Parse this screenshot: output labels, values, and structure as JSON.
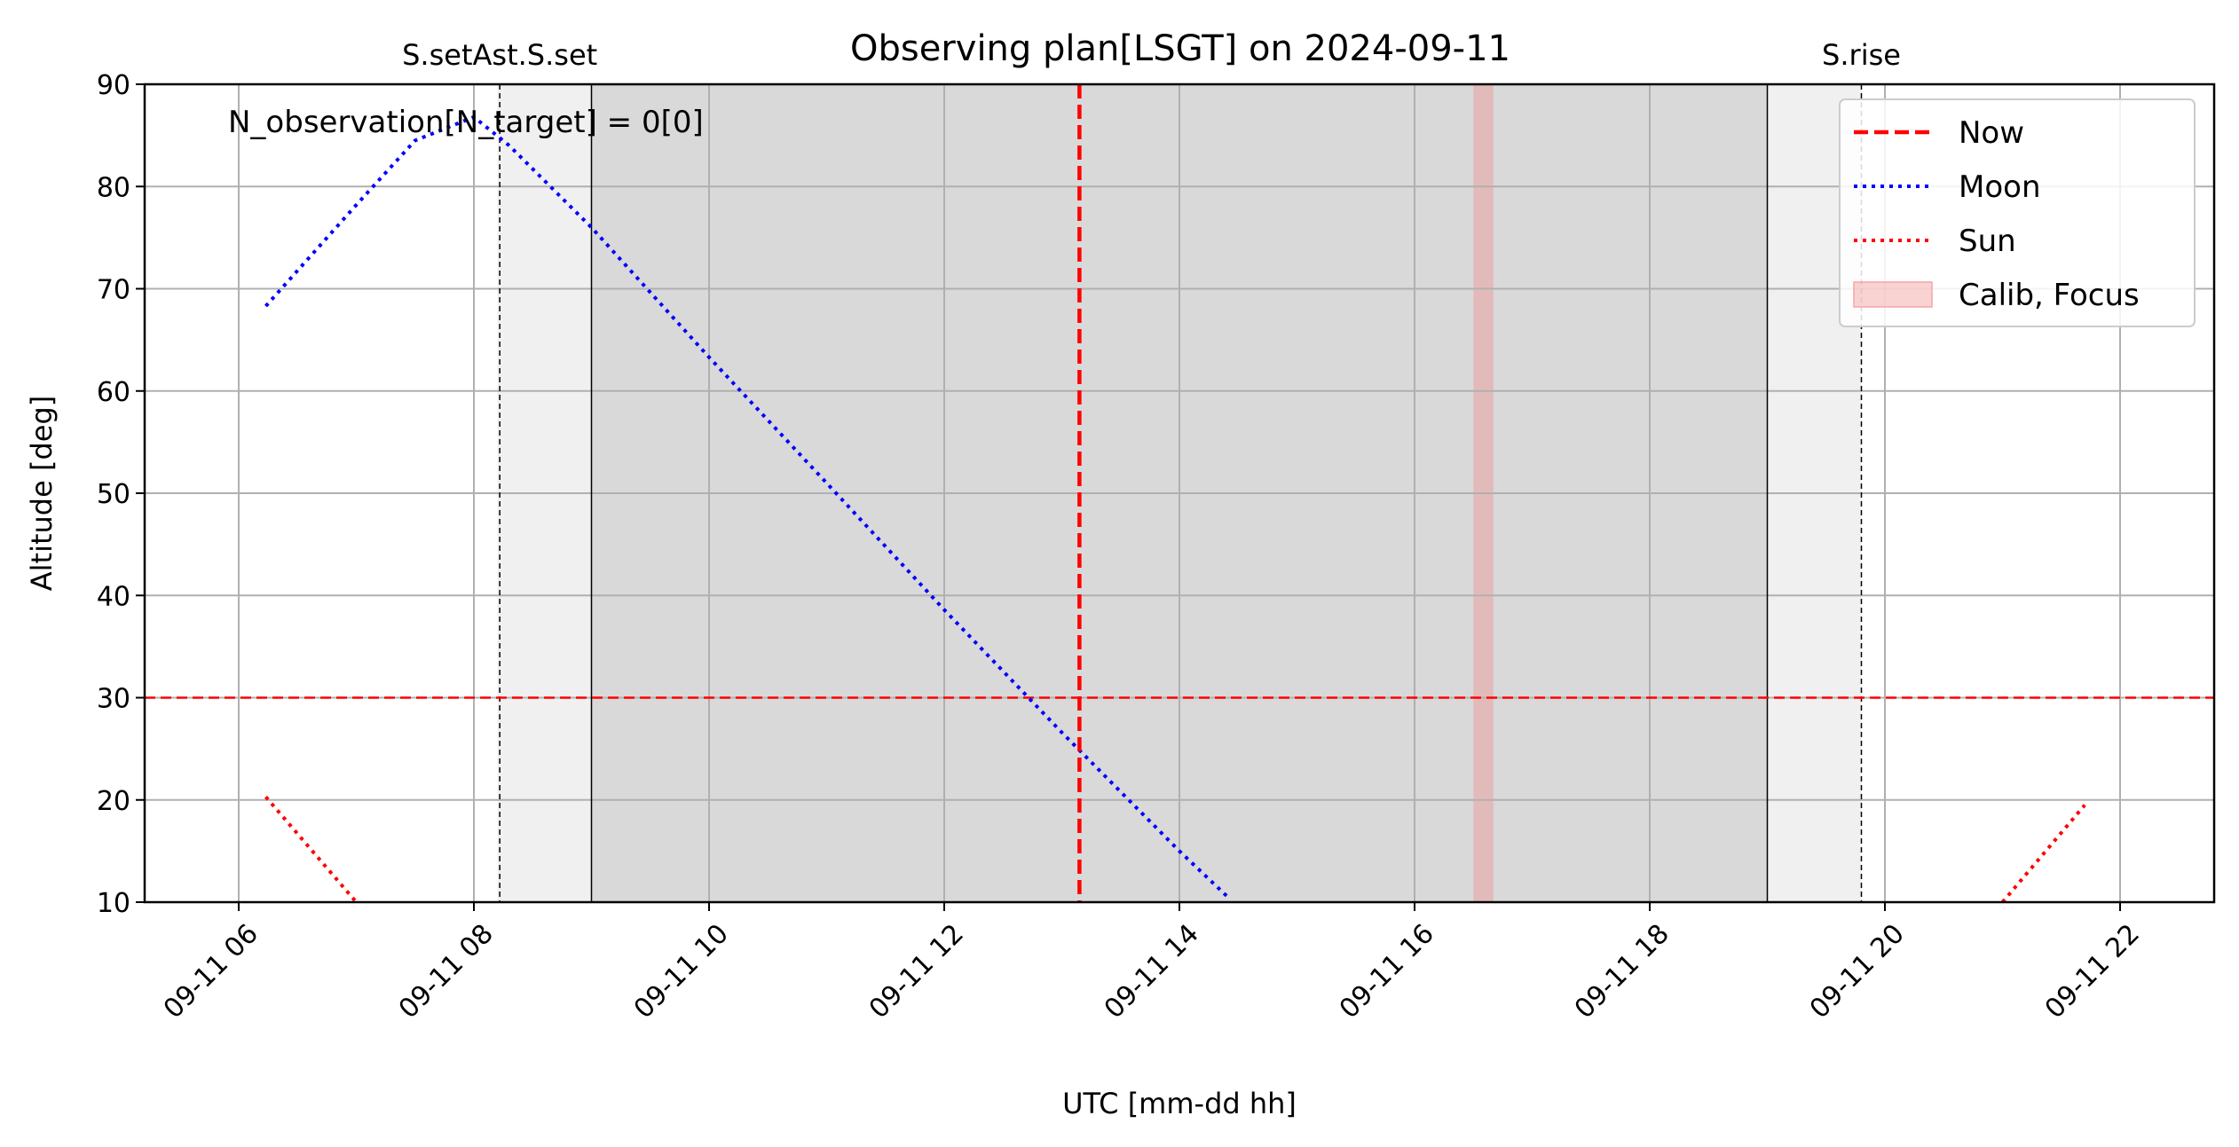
{
  "chart_data": {
    "type": "line",
    "title": "Observing plan[LSGT] on 2024-09-11",
    "xlabel": "UTC [mm-dd hh]",
    "ylabel": "Altitude [deg]",
    "x_ticks_hours": [
      6,
      8,
      10,
      12,
      14,
      16,
      18,
      20,
      22
    ],
    "x_tick_labels": [
      "09-11 06",
      "09-11 08",
      "09-11 10",
      "09-11 12",
      "09-11 14",
      "09-11 16",
      "09-11 18",
      "09-11 20",
      "09-11 22"
    ],
    "xlim_hours": [
      5.2,
      22.8
    ],
    "ylim": [
      10,
      90
    ],
    "y_ticks": [
      10,
      20,
      30,
      40,
      50,
      60,
      70,
      80,
      90
    ],
    "grid": true,
    "legend_position": "top-right",
    "annotation": "N_observation[N_target] = 0[0]",
    "altitude_limit": 30,
    "now_hour": 13.15,
    "twilight_bands": [
      {
        "start": 8.2,
        "end": 9.0,
        "shade": "light"
      },
      {
        "start": 9.0,
        "end": 19.0,
        "shade": "dark"
      },
      {
        "start": 19.0,
        "end": 19.8,
        "shade": "light"
      }
    ],
    "band_edges": [
      9.0,
      19.0
    ],
    "events": [
      {
        "label": "S.setAst.S.set",
        "hour": 8.22
      },
      {
        "label": "S.rise",
        "hour": 19.8
      }
    ],
    "calib_focus": {
      "start": 16.5,
      "end": 16.67
    },
    "series": [
      {
        "name": "Moon",
        "color": "#0000ff",
        "style": "dotted",
        "x": [
          6.23,
          7.0,
          7.5,
          8.0,
          8.3,
          9.0,
          10.0,
          11.0,
          12.0,
          13.0,
          14.0,
          14.43
        ],
        "y": [
          68.3,
          78.2,
          84.5,
          86.8,
          84.0,
          76.0,
          63.3,
          51.0,
          38.6,
          26.6,
          15.0,
          10.3
        ]
      },
      {
        "name": "Sun",
        "color": "#ff0000",
        "style": "dotted",
        "segments": [
          {
            "x": [
              6.23,
              7.0
            ],
            "y": [
              20.3,
              10.0
            ]
          },
          {
            "x": [
              21.0,
              21.7
            ],
            "y": [
              10.0,
              19.5
            ]
          }
        ]
      }
    ],
    "legend": [
      {
        "label": "Now",
        "kind": "dashed",
        "color": "#ff0000"
      },
      {
        "label": "Moon",
        "kind": "dotted",
        "color": "#0000ff"
      },
      {
        "label": "Sun",
        "kind": "dotted",
        "color": "#ff0000"
      },
      {
        "label": "Calib, Focus",
        "kind": "patch",
        "color": "#f4a6a6"
      }
    ],
    "colors": {
      "light_band": "#f0f0f0",
      "dark_band": "#d9d9d9",
      "grid": "#b0b0b0",
      "limit_line": "#ff0000",
      "now_line": "#ff0000"
    }
  }
}
